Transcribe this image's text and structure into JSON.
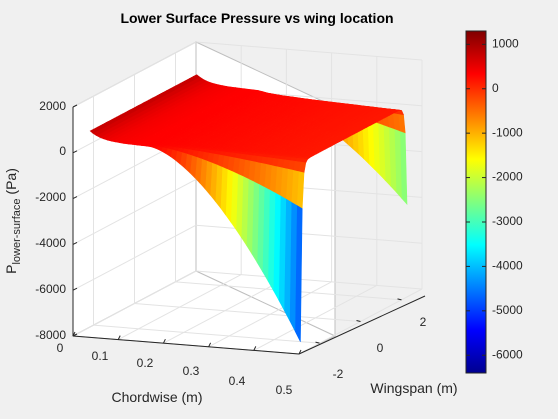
{
  "chart_data": {
    "type": "surface",
    "title": "Lower Surface Pressure vs wing location",
    "xlabel": "Chordwise (m)",
    "ylabel": "Wingspan (m)",
    "zlabel": {
      "main": "P",
      "subscript": "lower-surface",
      "unit": " (Pa)"
    },
    "x_ticks": [
      "0",
      "0.1",
      "0.2",
      "0.3",
      "0.4",
      "0.5"
    ],
    "y_ticks": [
      "-2",
      "0",
      "2"
    ],
    "z_ticks": [
      "-8000",
      "-6000",
      "-4000",
      "-2000",
      "0",
      "2000"
    ],
    "xlim": [
      0,
      0.5
    ],
    "ylim": [
      -3,
      3
    ],
    "zlim": [
      -8000,
      2000
    ],
    "colorbar": {
      "colormap": "jet",
      "range": [
        -6400,
        1300
      ],
      "ticks": [
        "1000",
        "0",
        "-1000",
        "-2000",
        "-3000",
        "-4000",
        "-5000",
        "-6000"
      ]
    },
    "surface": {
      "plateau_pressure_pa": 400,
      "leading_edge_peak_pa": 1300,
      "min_pressure_front_tip_pa": -8000,
      "min_pressure_back_tip_pa": -4200
    },
    "grid": true
  }
}
